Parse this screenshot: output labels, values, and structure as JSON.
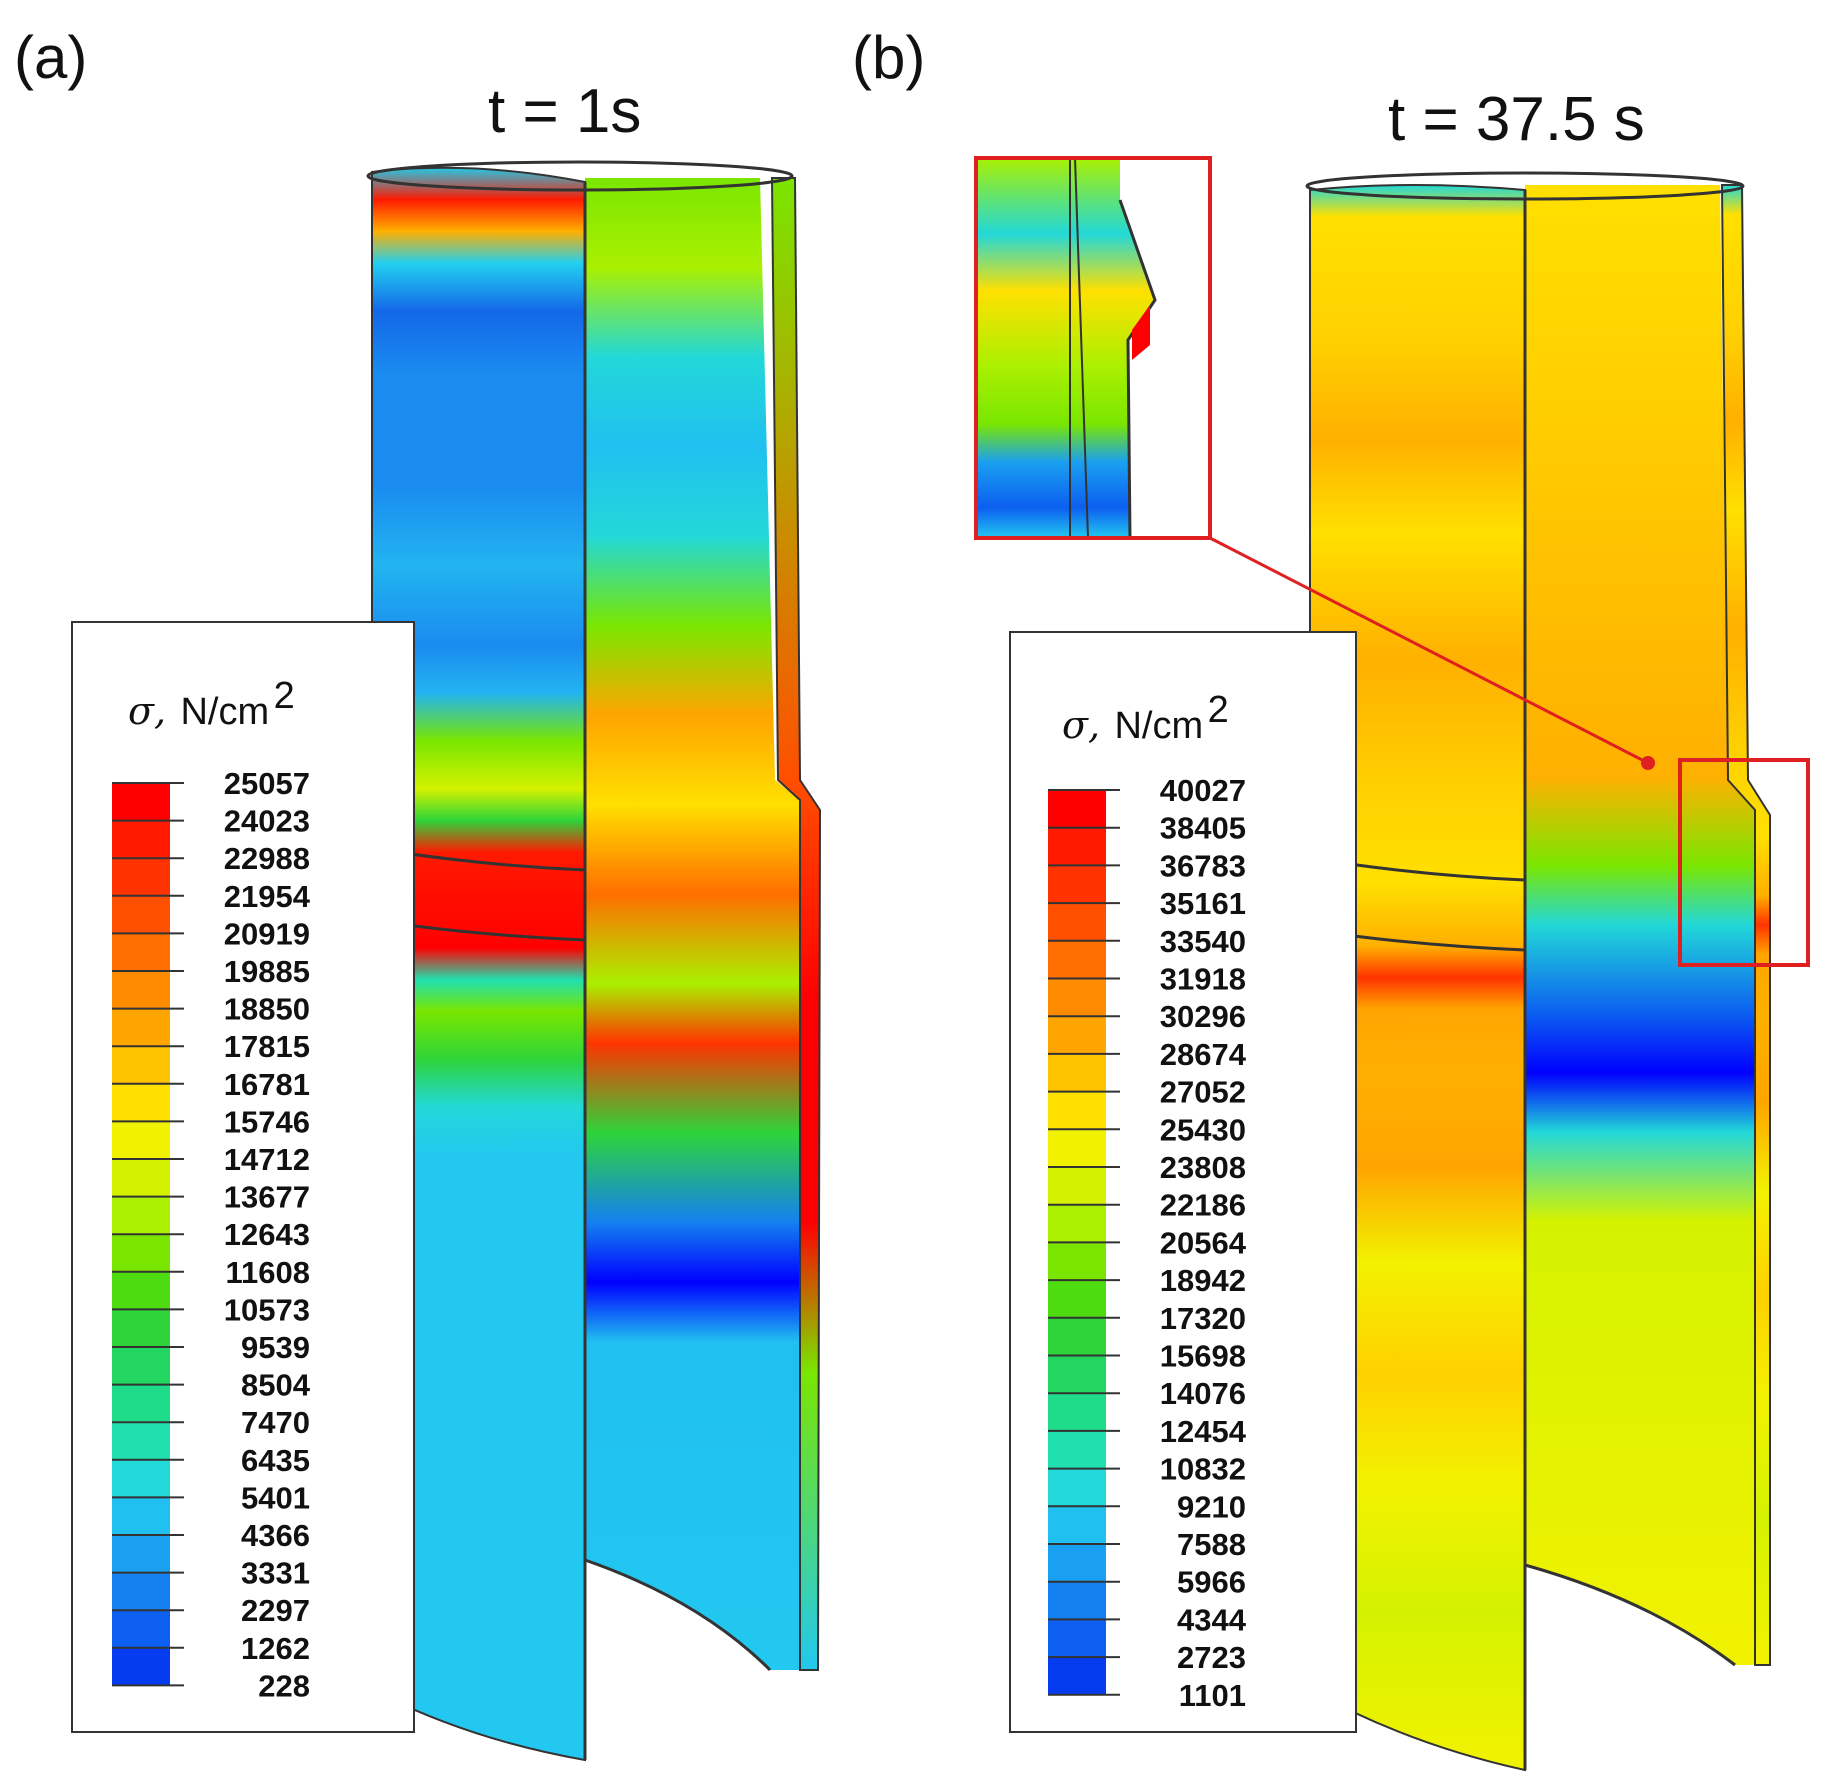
{
  "panels": [
    {
      "id": "a",
      "letter": "(a)",
      "time_label": "t  = 1s",
      "legend": {
        "symbol": "σ,",
        "unit": "N/cm",
        "unit_exp": "2",
        "ticks": [
          "25057",
          "24023",
          "22988",
          "21954",
          "20919",
          "19885",
          "18850",
          "17815",
          "16781",
          "15746",
          "14712",
          "13677",
          "12643",
          "11608",
          "10573",
          "9539",
          "8504",
          "7470",
          "6435",
          "5401",
          "4366",
          "3331",
          "2297",
          "1262",
          "228"
        ]
      }
    },
    {
      "id": "b",
      "letter": "(b)",
      "time_label": "t  = 37.5 s",
      "legend": {
        "symbol": "σ,",
        "unit": "N/cm",
        "unit_exp": "2",
        "ticks": [
          "40027",
          "38405",
          "36783",
          "35161",
          "33540",
          "31918",
          "30296",
          "28674",
          "27052",
          "25430",
          "23808",
          "22186",
          "20564",
          "18942",
          "17320",
          "15698",
          "14076",
          "12454",
          "10832",
          "9210",
          "7588",
          "5966",
          "4344",
          "2723",
          "1101"
        ]
      }
    }
  ],
  "colormap": [
    "#ff0000",
    "#ff1a00",
    "#ff3300",
    "#ff5000",
    "#ff6e00",
    "#ff8c00",
    "#ffa500",
    "#ffc400",
    "#ffe000",
    "#f2f200",
    "#d4f200",
    "#aaf000",
    "#7ae600",
    "#4ddc10",
    "#2ed43a",
    "#22d660",
    "#1fdc8a",
    "#20e0b0",
    "#22d8d8",
    "#20c0f0",
    "#1aa0f0",
    "#1480f0",
    "#0c5ff0",
    "#053cf0",
    "#0000ff"
  ]
}
